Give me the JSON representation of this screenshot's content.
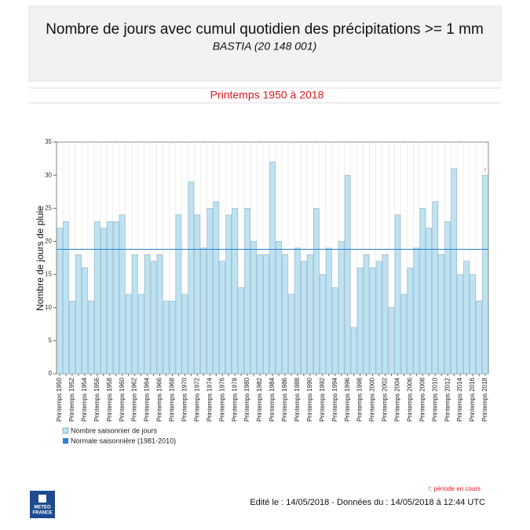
{
  "header": {
    "title": "Nombre de jours avec cumul quotidien des précipitations >= 1 mm",
    "subtitle": "BASTIA (20 148 001)"
  },
  "chart_data": {
    "type": "bar",
    "title": "Printemps 1950 à 2018",
    "y_label": "Nombre de jours de pluie",
    "categories": [
      "Printemps 1950",
      null,
      "Printemps 1952",
      null,
      "Printemps 1954",
      null,
      "Printemps 1956",
      null,
      "Printemps 1958",
      null,
      "Printemps 1960",
      null,
      "Printemps 1962",
      null,
      "Printemps 1964",
      null,
      "Printemps 1966",
      null,
      "Printemps 1968",
      null,
      "Printemps 1970",
      null,
      "Printemps 1972",
      null,
      "Printemps 1974",
      null,
      "Printemps 1976",
      null,
      "Printemps 1978",
      null,
      "Printemps 1980",
      null,
      "Printemps 1982",
      null,
      "Printemps 1984",
      null,
      "Printemps 1986",
      null,
      "Printemps 1988",
      null,
      "Printemps 1990",
      null,
      "Printemps 1992",
      null,
      "Printemps 1994",
      null,
      "Printemps 1996",
      null,
      "Printemps 1998",
      null,
      "Printemps 2000",
      null,
      "Printemps 2002",
      null,
      "Printemps 2004",
      null,
      "Printemps 2006",
      null,
      "Printemps 2008",
      null,
      "Printemps 2010",
      null,
      "Printemps 2012",
      null,
      "Printemps 2014",
      null,
      "Printemps 2016",
      null,
      "Printemps 2018"
    ],
    "series": [
      {
        "name": "Nombre saisonnier de jours",
        "color": "#bde3f3",
        "values": [
          22,
          23,
          11,
          18,
          16,
          11,
          23,
          22,
          23,
          23,
          24,
          12,
          18,
          12,
          18,
          17,
          18,
          11,
          11,
          24,
          12,
          29,
          24,
          19,
          25,
          26,
          17,
          24,
          25,
          13,
          25,
          20,
          18,
          18,
          32,
          20,
          18,
          12,
          19,
          17,
          18,
          25,
          15,
          19,
          13,
          20,
          30,
          7,
          16,
          18,
          16,
          17,
          18,
          10,
          24,
          12,
          16,
          19,
          25,
          22,
          26,
          18,
          23,
          31,
          15,
          17,
          15,
          11,
          30
        ]
      }
    ],
    "normal": {
      "name": "Normale saisonnière (1981-2010)",
      "color": "#2a7fd4",
      "value": 18.8
    },
    "annotation": "!",
    "ylim": [
      0,
      35
    ],
    "yticks": [
      0,
      5,
      10,
      15,
      20,
      25,
      30,
      35
    ]
  },
  "footnote": "!: période en cours",
  "footer": "Edité le : 14/05/2018 - Données du : 14/05/2018 à 12:44 UTC",
  "logo": [
    "METEO",
    "FRANCE"
  ]
}
